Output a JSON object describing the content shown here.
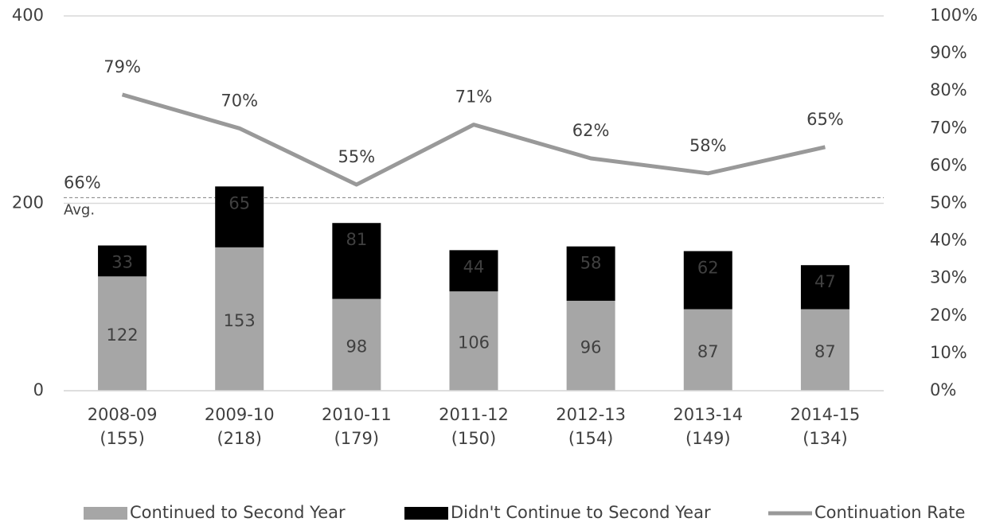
{
  "chart_data": {
    "type": "bar",
    "categories": [
      [
        "2008-09",
        "(155)"
      ],
      [
        "2009-10",
        "(218)"
      ],
      [
        "2010-11",
        "(179)"
      ],
      [
        "2011-12",
        "(150)"
      ],
      [
        "2012-13",
        "(154)"
      ],
      [
        "2013-14",
        "(149)"
      ],
      [
        "2014-15",
        "(134)"
      ]
    ],
    "series": [
      {
        "name": "Continued to Second Year",
        "color": "#a6a6a6",
        "type": "bar",
        "values": [
          122,
          153,
          98,
          106,
          96,
          87,
          87
        ]
      },
      {
        "name": "Didn't Continue to Second Year",
        "color": "#000000",
        "type": "bar",
        "values": [
          33,
          65,
          81,
          44,
          58,
          62,
          47
        ]
      },
      {
        "name": "Continuation Rate",
        "color": "#999999",
        "type": "line",
        "axis": "y2",
        "values": [
          79,
          70,
          55,
          71,
          62,
          58,
          65
        ],
        "value_labels": [
          "79%",
          "70%",
          "55%",
          "71%",
          "62%",
          "58%",
          "65%"
        ]
      }
    ],
    "stacked": true,
    "ylim": [
      0,
      400
    ],
    "yticks": [
      0,
      200,
      400
    ],
    "y2lim": [
      0,
      100
    ],
    "y2ticks": [
      {
        "value": 0,
        "label": "0%"
      },
      {
        "value": 10,
        "label": "10%"
      },
      {
        "value": 20,
        "label": "20%"
      },
      {
        "value": 30,
        "label": "30%"
      },
      {
        "value": 40,
        "label": "40%"
      },
      {
        "value": 50,
        "label": "50%"
      },
      {
        "value": 60,
        "label": "60%"
      },
      {
        "value": 70,
        "label": "70%"
      },
      {
        "value": 80,
        "label": "80%"
      },
      {
        "value": 90,
        "label": "90%"
      },
      {
        "value": 100,
        "label": "100%"
      }
    ],
    "grid": true,
    "legend": "bottom",
    "average": {
      "value": 206,
      "label": "66%",
      "text": "Avg."
    }
  }
}
